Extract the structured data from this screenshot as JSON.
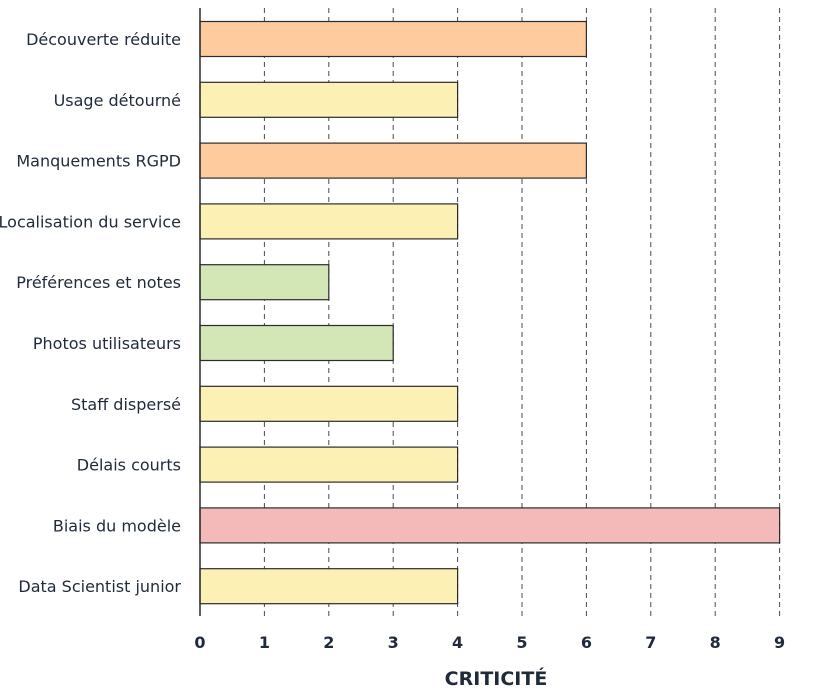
{
  "chart_data": {
    "type": "bar",
    "orientation": "horizontal",
    "categories": [
      "Découverte réduite",
      "Usage détourné",
      "Manquements RGPD",
      "Localisation du service",
      "Préférences et notes",
      "Photos utilisateurs",
      "Staff dispersé",
      "Délais courts",
      "Biais du modèle",
      "Data Scientist junior"
    ],
    "values": [
      6,
      4,
      6,
      4,
      2,
      3,
      4,
      4,
      9,
      4
    ],
    "colors": [
      "#fdcb9e",
      "#fdf0b5",
      "#fdcb9e",
      "#fdf0b5",
      "#d3e6b5",
      "#d3e6b5",
      "#fdf0b5",
      "#fdf0b5",
      "#f4baba",
      "#fdf0b5"
    ],
    "xlabel": "CRITICITÉ",
    "ylabel": "",
    "title": "",
    "xlim": [
      0,
      9
    ],
    "xticks": [
      "0",
      "1",
      "2",
      "3",
      "4",
      "5",
      "6",
      "7",
      "8",
      "9"
    ],
    "grid": "vertical-dashed",
    "legend": "none"
  }
}
